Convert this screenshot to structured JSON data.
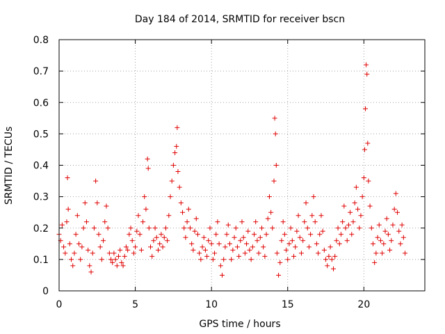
{
  "chart_data": {
    "type": "scatter",
    "title": "Day 184 of 2014, SRMTID for receiver bscn",
    "xlabel": "GPS time / hours",
    "ylabel": "SRMTID / TECUs",
    "xlim": [
      0,
      24
    ],
    "ylim": [
      0,
      0.8
    ],
    "x_ticks": [
      0,
      5,
      10,
      15,
      20
    ],
    "x_tick_labels": [
      "0",
      "5",
      "10",
      "15",
      "20"
    ],
    "y_ticks": [
      0,
      0.1,
      0.2,
      0.3,
      0.4,
      0.5,
      0.6,
      0.7,
      0.8
    ],
    "y_tick_labels": [
      "0",
      "0.1",
      "0.2",
      "0.3",
      "0.4",
      "0.5",
      "0.6",
      "0.7",
      "0.8"
    ],
    "grid": true,
    "marker": "+",
    "marker_color": "#e00000",
    "series": [
      {
        "name": "SRMTID",
        "points": [
          [
            0.0,
            0.18
          ],
          [
            0.1,
            0.16
          ],
          [
            0.2,
            0.21
          ],
          [
            0.3,
            0.14
          ],
          [
            0.4,
            0.12
          ],
          [
            0.5,
            0.22
          ],
          [
            0.55,
            0.36
          ],
          [
            0.6,
            0.26
          ],
          [
            0.7,
            0.15
          ],
          [
            0.8,
            0.1
          ],
          [
            0.9,
            0.08
          ],
          [
            1.0,
            0.12
          ],
          [
            1.1,
            0.18
          ],
          [
            1.2,
            0.24
          ],
          [
            1.3,
            0.15
          ],
          [
            1.4,
            0.1
          ],
          [
            1.5,
            0.14
          ],
          [
            1.6,
            0.2
          ],
          [
            1.7,
            0.28
          ],
          [
            1.8,
            0.22
          ],
          [
            1.9,
            0.13
          ],
          [
            2.0,
            0.08
          ],
          [
            2.1,
            0.06
          ],
          [
            2.2,
            0.12
          ],
          [
            2.3,
            0.2
          ],
          [
            2.4,
            0.35
          ],
          [
            2.5,
            0.28
          ],
          [
            2.6,
            0.18
          ],
          [
            2.7,
            0.14
          ],
          [
            2.8,
            0.1
          ],
          [
            2.9,
            0.16
          ],
          [
            3.0,
            0.22
          ],
          [
            3.1,
            0.27
          ],
          [
            3.2,
            0.2
          ],
          [
            3.3,
            0.12
          ],
          [
            3.4,
            0.1
          ],
          [
            3.5,
            0.09
          ],
          [
            3.6,
            0.12
          ],
          [
            3.7,
            0.1
          ],
          [
            3.8,
            0.08
          ],
          [
            3.9,
            0.11
          ],
          [
            4.0,
            0.13
          ],
          [
            4.1,
            0.09
          ],
          [
            4.2,
            0.08
          ],
          [
            4.3,
            0.11
          ],
          [
            4.4,
            0.14
          ],
          [
            4.5,
            0.13
          ],
          [
            4.6,
            0.18
          ],
          [
            4.7,
            0.2
          ],
          [
            4.8,
            0.16
          ],
          [
            4.9,
            0.12
          ],
          [
            5.0,
            0.14
          ],
          [
            5.1,
            0.19
          ],
          [
            5.2,
            0.24
          ],
          [
            5.3,
            0.18
          ],
          [
            5.4,
            0.13
          ],
          [
            5.5,
            0.22
          ],
          [
            5.6,
            0.3
          ],
          [
            5.7,
            0.26
          ],
          [
            5.8,
            0.42
          ],
          [
            5.85,
            0.39
          ],
          [
            5.9,
            0.2
          ],
          [
            6.0,
            0.14
          ],
          [
            6.1,
            0.11
          ],
          [
            6.2,
            0.16
          ],
          [
            6.3,
            0.2
          ],
          [
            6.4,
            0.17
          ],
          [
            6.5,
            0.13
          ],
          [
            6.6,
            0.15
          ],
          [
            6.7,
            0.18
          ],
          [
            6.8,
            0.14
          ],
          [
            6.9,
            0.17
          ],
          [
            7.0,
            0.2
          ],
          [
            7.1,
            0.16
          ],
          [
            7.2,
            0.24
          ],
          [
            7.3,
            0.3
          ],
          [
            7.4,
            0.35
          ],
          [
            7.5,
            0.4
          ],
          [
            7.6,
            0.44
          ],
          [
            7.7,
            0.46
          ],
          [
            7.75,
            0.52
          ],
          [
            7.8,
            0.38
          ],
          [
            7.9,
            0.33
          ],
          [
            8.0,
            0.28
          ],
          [
            8.1,
            0.25
          ],
          [
            8.2,
            0.2
          ],
          [
            8.3,
            0.17
          ],
          [
            8.4,
            0.22
          ],
          [
            8.5,
            0.26
          ],
          [
            8.6,
            0.2
          ],
          [
            8.7,
            0.15
          ],
          [
            8.8,
            0.13
          ],
          [
            8.9,
            0.19
          ],
          [
            9.0,
            0.23
          ],
          [
            9.1,
            0.18
          ],
          [
            9.2,
            0.12
          ],
          [
            9.3,
            0.1
          ],
          [
            9.4,
            0.14
          ],
          [
            9.5,
            0.17
          ],
          [
            9.6,
            0.13
          ],
          [
            9.7,
            0.11
          ],
          [
            9.8,
            0.16
          ],
          [
            9.9,
            0.2
          ],
          [
            10.0,
            0.15
          ],
          [
            10.1,
            0.1
          ],
          [
            10.2,
            0.12
          ],
          [
            10.3,
            0.18
          ],
          [
            10.4,
            0.22
          ],
          [
            10.5,
            0.15
          ],
          [
            10.6,
            0.08
          ],
          [
            10.7,
            0.05
          ],
          [
            10.8,
            0.1
          ],
          [
            10.9,
            0.14
          ],
          [
            11.0,
            0.18
          ],
          [
            11.1,
            0.21
          ],
          [
            11.2,
            0.15
          ],
          [
            11.3,
            0.1
          ],
          [
            11.4,
            0.13
          ],
          [
            11.5,
            0.17
          ],
          [
            11.6,
            0.2
          ],
          [
            11.7,
            0.14
          ],
          [
            11.8,
            0.11
          ],
          [
            11.9,
            0.16
          ],
          [
            12.0,
            0.22
          ],
          [
            12.1,
            0.17
          ],
          [
            12.2,
            0.12
          ],
          [
            12.3,
            0.15
          ],
          [
            12.4,
            0.19
          ],
          [
            12.5,
            0.13
          ],
          [
            12.6,
            0.1
          ],
          [
            12.7,
            0.14
          ],
          [
            12.8,
            0.18
          ],
          [
            12.9,
            0.22
          ],
          [
            13.0,
            0.16
          ],
          [
            13.1,
            0.12
          ],
          [
            13.2,
            0.17
          ],
          [
            13.3,
            0.2
          ],
          [
            13.4,
            0.14
          ],
          [
            13.5,
            0.11
          ],
          [
            13.6,
            0.18
          ],
          [
            13.7,
            0.23
          ],
          [
            13.8,
            0.3
          ],
          [
            13.9,
            0.25
          ],
          [
            14.0,
            0.2
          ],
          [
            14.1,
            0.35
          ],
          [
            14.15,
            0.55
          ],
          [
            14.2,
            0.5
          ],
          [
            14.25,
            0.4
          ],
          [
            14.3,
            0.12
          ],
          [
            14.4,
            0.05
          ],
          [
            14.5,
            0.09
          ],
          [
            14.6,
            0.16
          ],
          [
            14.7,
            0.22
          ],
          [
            14.8,
            0.18
          ],
          [
            14.9,
            0.13
          ],
          [
            15.0,
            0.1
          ],
          [
            15.1,
            0.15
          ],
          [
            15.2,
            0.2
          ],
          [
            15.3,
            0.16
          ],
          [
            15.4,
            0.11
          ],
          [
            15.5,
            0.14
          ],
          [
            15.6,
            0.19
          ],
          [
            15.7,
            0.24
          ],
          [
            15.8,
            0.17
          ],
          [
            15.9,
            0.12
          ],
          [
            16.0,
            0.16
          ],
          [
            16.1,
            0.22
          ],
          [
            16.2,
            0.28
          ],
          [
            16.3,
            0.2
          ],
          [
            16.4,
            0.14
          ],
          [
            16.5,
            0.18
          ],
          [
            16.6,
            0.24
          ],
          [
            16.7,
            0.3
          ],
          [
            16.8,
            0.22
          ],
          [
            16.9,
            0.15
          ],
          [
            17.0,
            0.12
          ],
          [
            17.1,
            0.18
          ],
          [
            17.2,
            0.24
          ],
          [
            17.3,
            0.19
          ],
          [
            17.4,
            0.13
          ],
          [
            17.5,
            0.1
          ],
          [
            17.6,
            0.08
          ],
          [
            17.7,
            0.11
          ],
          [
            17.8,
            0.14
          ],
          [
            17.9,
            0.1
          ],
          [
            18.0,
            0.07
          ],
          [
            18.1,
            0.11
          ],
          [
            18.2,
            0.16
          ],
          [
            18.3,
            0.2
          ],
          [
            18.4,
            0.15
          ],
          [
            18.5,
            0.18
          ],
          [
            18.6,
            0.22
          ],
          [
            18.7,
            0.27
          ],
          [
            18.8,
            0.2
          ],
          [
            18.9,
            0.16
          ],
          [
            19.0,
            0.21
          ],
          [
            19.1,
            0.25
          ],
          [
            19.2,
            0.18
          ],
          [
            19.3,
            0.22
          ],
          [
            19.4,
            0.28
          ],
          [
            19.5,
            0.33
          ],
          [
            19.6,
            0.26
          ],
          [
            19.7,
            0.2
          ],
          [
            19.8,
            0.24
          ],
          [
            19.9,
            0.3
          ],
          [
            20.0,
            0.36
          ],
          [
            20.05,
            0.45
          ],
          [
            20.1,
            0.58
          ],
          [
            20.15,
            0.72
          ],
          [
            20.2,
            0.69
          ],
          [
            20.25,
            0.47
          ],
          [
            20.3,
            0.35
          ],
          [
            20.4,
            0.27
          ],
          [
            20.5,
            0.2
          ],
          [
            20.6,
            0.15
          ],
          [
            20.7,
            0.09
          ],
          [
            20.8,
            0.12
          ],
          [
            20.9,
            0.17
          ],
          [
            21.0,
            0.21
          ],
          [
            21.1,
            0.16
          ],
          [
            21.2,
            0.12
          ],
          [
            21.3,
            0.15
          ],
          [
            21.4,
            0.19
          ],
          [
            21.5,
            0.23
          ],
          [
            21.6,
            0.18
          ],
          [
            21.7,
            0.13
          ],
          [
            21.8,
            0.16
          ],
          [
            21.9,
            0.21
          ],
          [
            22.0,
            0.26
          ],
          [
            22.1,
            0.31
          ],
          [
            22.2,
            0.25
          ],
          [
            22.3,
            0.19
          ],
          [
            22.4,
            0.15
          ],
          [
            22.5,
            0.21
          ],
          [
            22.6,
            0.17
          ],
          [
            22.7,
            0.12
          ]
        ]
      }
    ]
  }
}
